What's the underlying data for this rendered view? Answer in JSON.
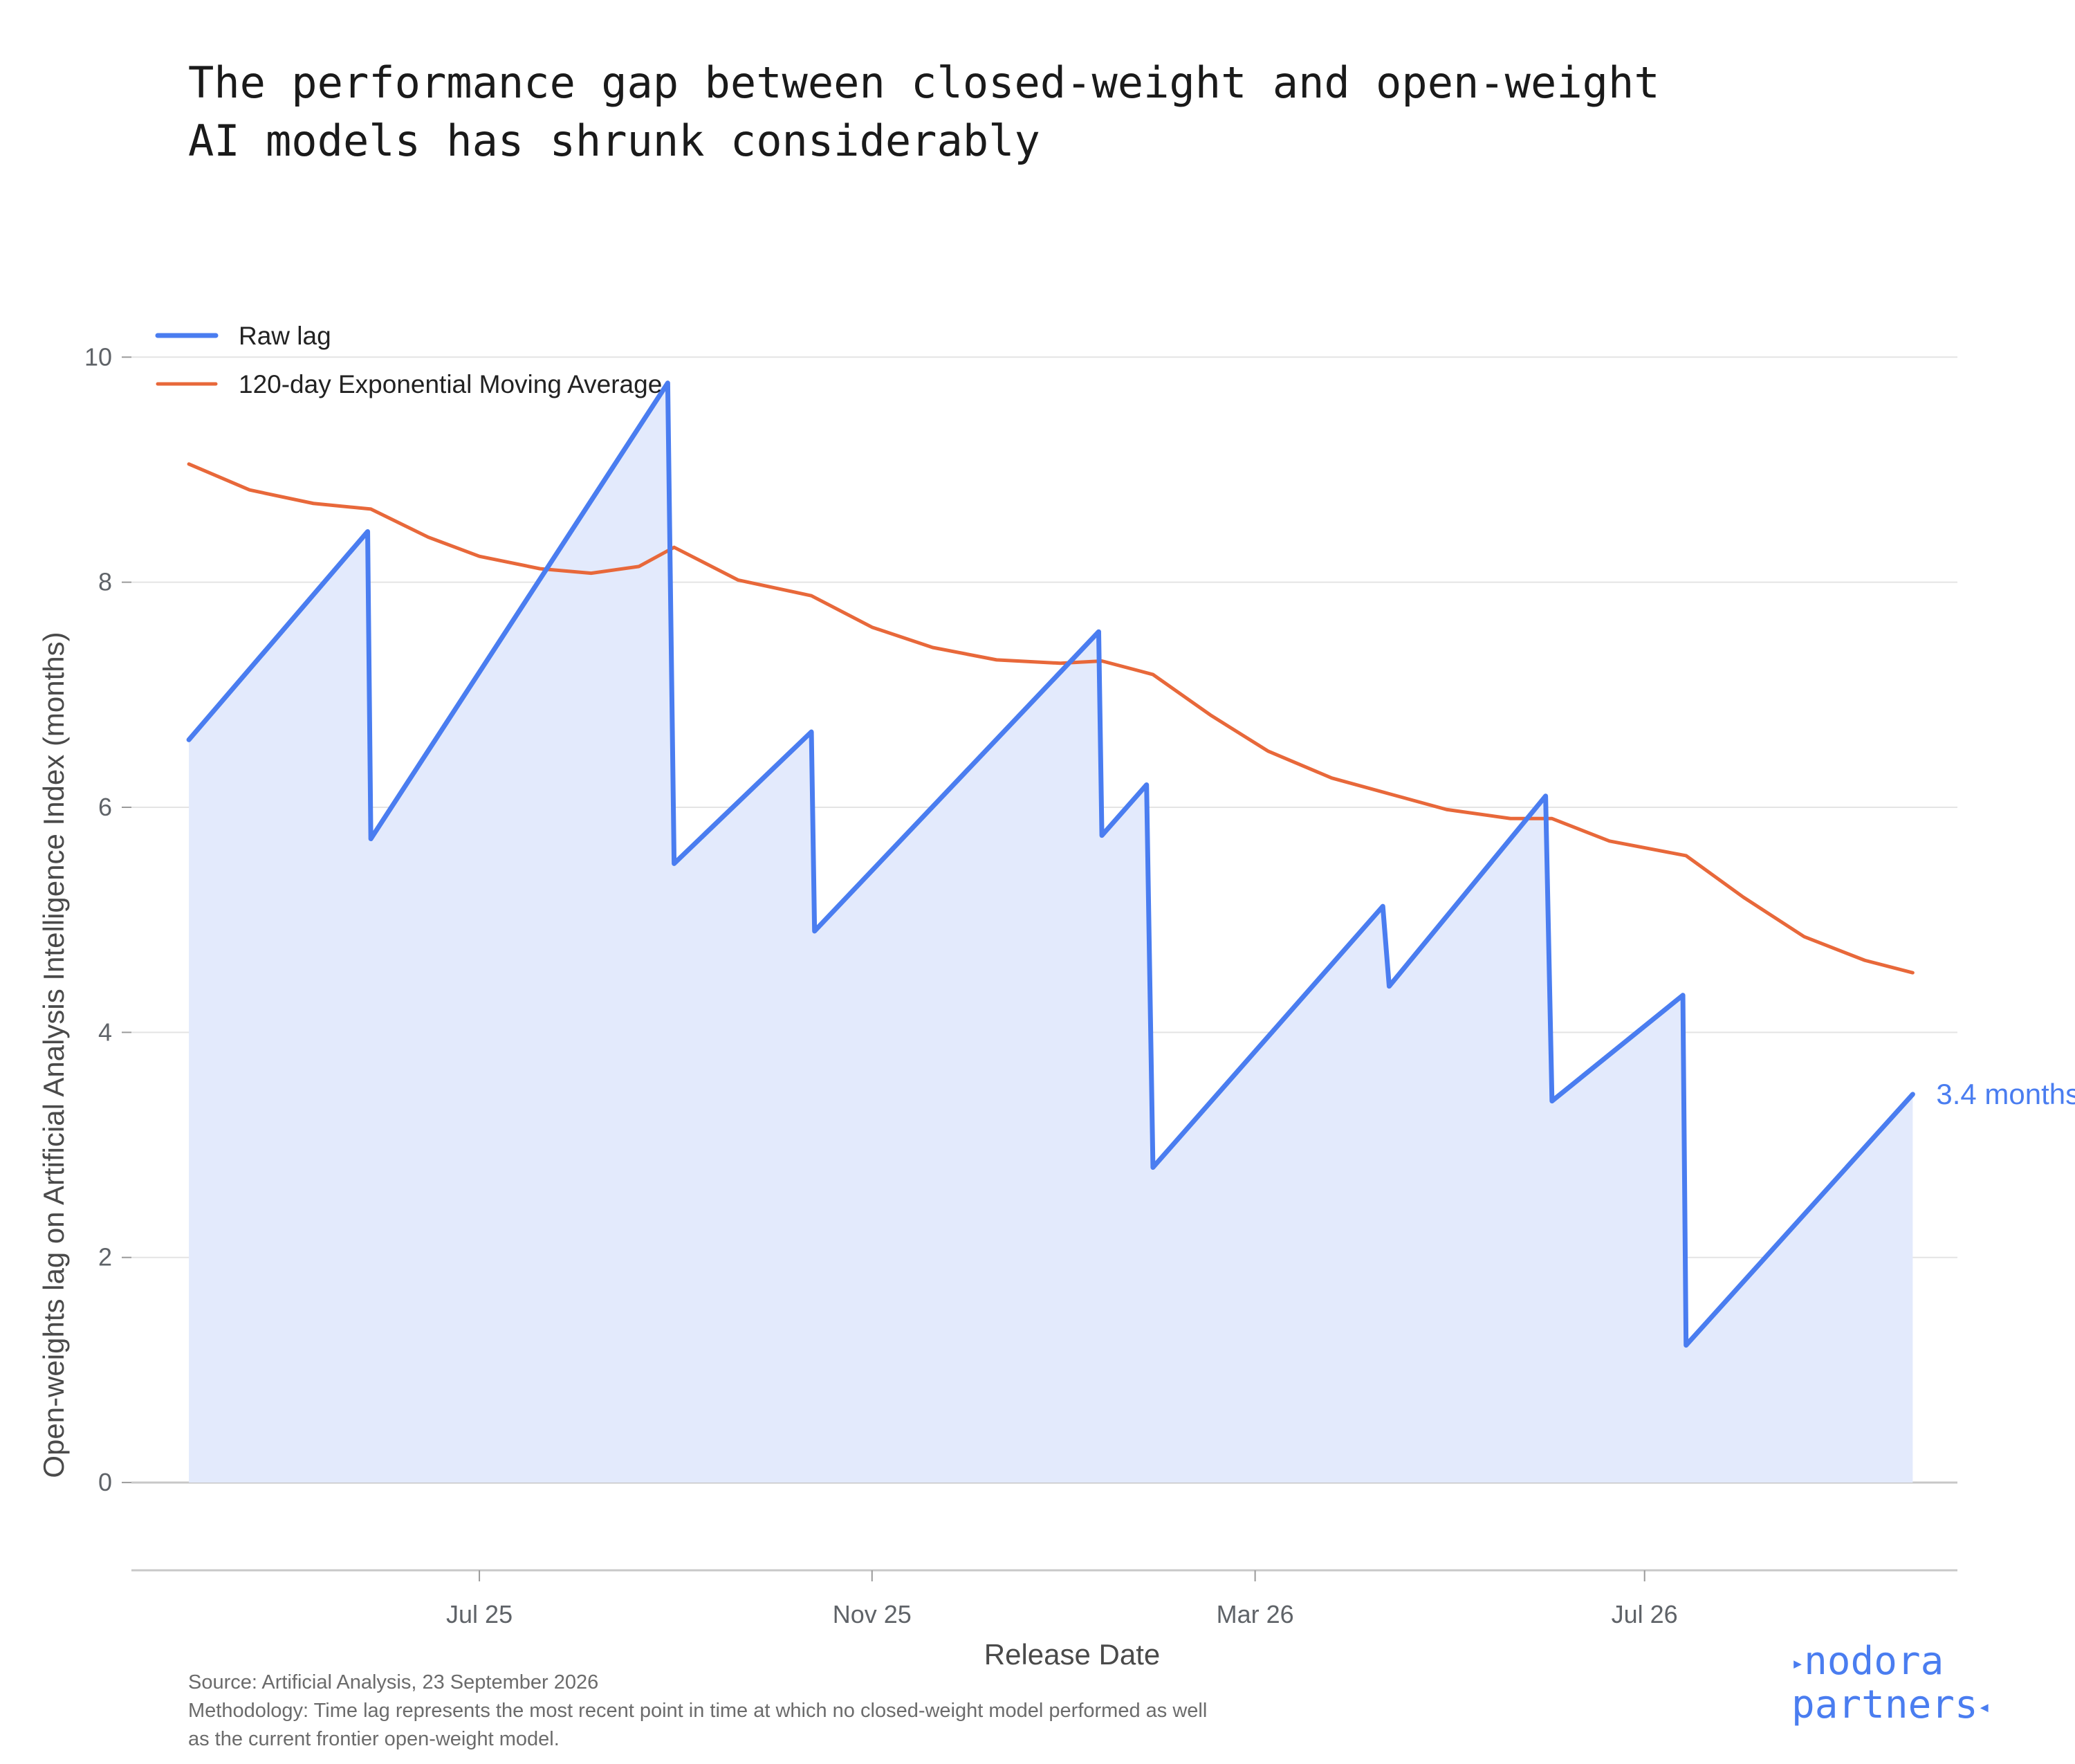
{
  "title": {
    "line1": "The performance gap between closed-weight and open-weight",
    "line2": "AI models has shrunk considerably"
  },
  "footer": {
    "source": "Source: Artificial Analysis, 23 September 2026",
    "methodology_1": "Methodology: Time lag represents the most recent point in time at which no closed-weight model performed as well",
    "methodology_2": "as the current frontier open-weight model."
  },
  "logo": {
    "line1": "nodora",
    "line2": "partners",
    "color": "#4a7df0"
  },
  "chart_data": {
    "type": "line",
    "xlabel": "Release Date",
    "ylabel": "Open-weights lag on Artificial Analysis Intelligence Index (months)",
    "x_tick_labels": [
      "Jul 25",
      "Nov 25",
      "Mar 26",
      "Jul 26"
    ],
    "x_tick_dates": [
      "2025-07-01",
      "2025-11-01",
      "2026-03-01",
      "2026-07-01"
    ],
    "xlim": [
      "2025-03-14",
      "2026-10-07"
    ],
    "ylim": [
      -0.78,
      10.1
    ],
    "y_ticks": [
      0,
      2,
      4,
      6,
      8,
      10
    ],
    "grid": true,
    "legend_position": "top-left",
    "end_label": "3.4 months",
    "series": [
      {
        "name": "Raw lag",
        "color": "#4a7df0",
        "fill": "#e3eafc",
        "points": [
          [
            "2025-04-01",
            6.6
          ],
          [
            "2025-05-27",
            8.45
          ],
          [
            "2025-05-28",
            5.72
          ],
          [
            "2025-08-29",
            9.77
          ],
          [
            "2025-08-31",
            5.5
          ],
          [
            "2025-10-13",
            6.67
          ],
          [
            "2025-10-14",
            4.9
          ],
          [
            "2026-01-11",
            7.56
          ],
          [
            "2026-01-12",
            5.75
          ],
          [
            "2026-01-26",
            6.2
          ],
          [
            "2026-01-28",
            2.8
          ],
          [
            "2026-04-10",
            5.12
          ],
          [
            "2026-04-12",
            4.41
          ],
          [
            "2026-05-31",
            6.1
          ],
          [
            "2026-06-02",
            3.39
          ],
          [
            "2026-07-13",
            4.33
          ],
          [
            "2026-07-14",
            1.22
          ],
          [
            "2026-09-23",
            3.45
          ]
        ]
      },
      {
        "name": "120-day Exponential Moving Average",
        "color": "#e8683a",
        "points": [
          [
            "2025-04-01",
            9.05
          ],
          [
            "2025-04-20",
            8.82
          ],
          [
            "2025-05-10",
            8.7
          ],
          [
            "2025-05-28",
            8.65
          ],
          [
            "2025-06-15",
            8.4
          ],
          [
            "2025-07-01",
            8.23
          ],
          [
            "2025-07-20",
            8.12
          ],
          [
            "2025-08-05",
            8.08
          ],
          [
            "2025-08-20",
            8.14
          ],
          [
            "2025-08-31",
            8.31
          ],
          [
            "2025-09-20",
            8.02
          ],
          [
            "2025-10-13",
            7.88
          ],
          [
            "2025-11-01",
            7.6
          ],
          [
            "2025-11-20",
            7.42
          ],
          [
            "2025-12-10",
            7.31
          ],
          [
            "2025-12-30",
            7.28
          ],
          [
            "2026-01-12",
            7.3
          ],
          [
            "2026-01-28",
            7.18
          ],
          [
            "2026-02-15",
            6.82
          ],
          [
            "2026-03-05",
            6.5
          ],
          [
            "2026-03-25",
            6.26
          ],
          [
            "2026-04-12",
            6.12
          ],
          [
            "2026-04-30",
            5.98
          ],
          [
            "2026-05-20",
            5.9
          ],
          [
            "2026-06-02",
            5.9
          ],
          [
            "2026-06-20",
            5.7
          ],
          [
            "2026-07-14",
            5.57
          ],
          [
            "2026-08-01",
            5.2
          ],
          [
            "2026-08-20",
            4.85
          ],
          [
            "2026-09-08",
            4.64
          ],
          [
            "2026-09-23",
            4.53
          ]
        ]
      }
    ]
  }
}
